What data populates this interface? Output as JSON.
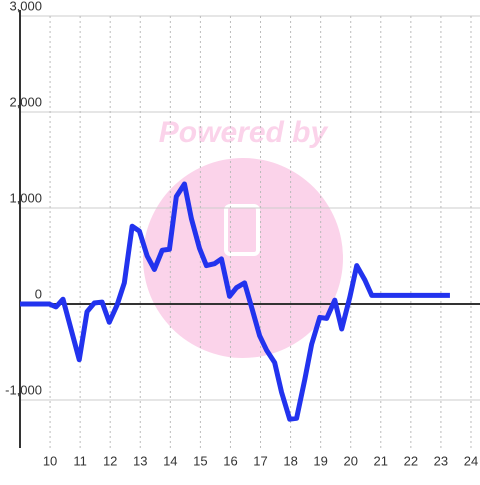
{
  "chart_data": {
    "type": "line",
    "watermark": "Powered by",
    "x": [
      9.0,
      9.97,
      10.2,
      10.43,
      10.97,
      11.23,
      11.47,
      11.73,
      11.97,
      12.23,
      12.47,
      12.73,
      12.97,
      13.23,
      13.47,
      13.73,
      13.97,
      14.2,
      14.47,
      14.7,
      14.97,
      15.2,
      15.47,
      15.7,
      15.97,
      16.2,
      16.47,
      16.7,
      16.97,
      17.2,
      17.47,
      17.7,
      17.97,
      18.2,
      18.47,
      18.7,
      18.97,
      19.2,
      19.47,
      19.7,
      19.97,
      20.2,
      20.47,
      20.7,
      20.97,
      23.3
    ],
    "series": [
      {
        "color": "#2233ee",
        "values": [
          0,
          0,
          -30,
          50,
          -580,
          -80,
          10,
          20,
          -190,
          -10,
          220,
          810,
          760,
          500,
          360,
          560,
          570,
          1120,
          1250,
          890,
          580,
          400,
          420,
          470,
          80,
          170,
          220,
          -30,
          -330,
          -480,
          -610,
          -920,
          -1200,
          -1190,
          -790,
          -420,
          -140,
          -150,
          40,
          -260,
          70,
          400,
          250,
          90,
          90,
          90
        ]
      }
    ],
    "xlim": [
      9,
      24.3
    ],
    "xticks": [
      10,
      11,
      12,
      13,
      14,
      15,
      16,
      17,
      18,
      19,
      20,
      21,
      22,
      23,
      24
    ],
    "ylim": [
      -1500,
      3000
    ],
    "yticks": [
      {
        "value": -1000,
        "label": "-1,000"
      },
      0,
      {
        "value": 1000,
        "label": "1,000"
      },
      {
        "value": 2000,
        "label": "2,000"
      },
      {
        "value": 3000,
        "label": "3,000"
      }
    ],
    "grid": true
  }
}
